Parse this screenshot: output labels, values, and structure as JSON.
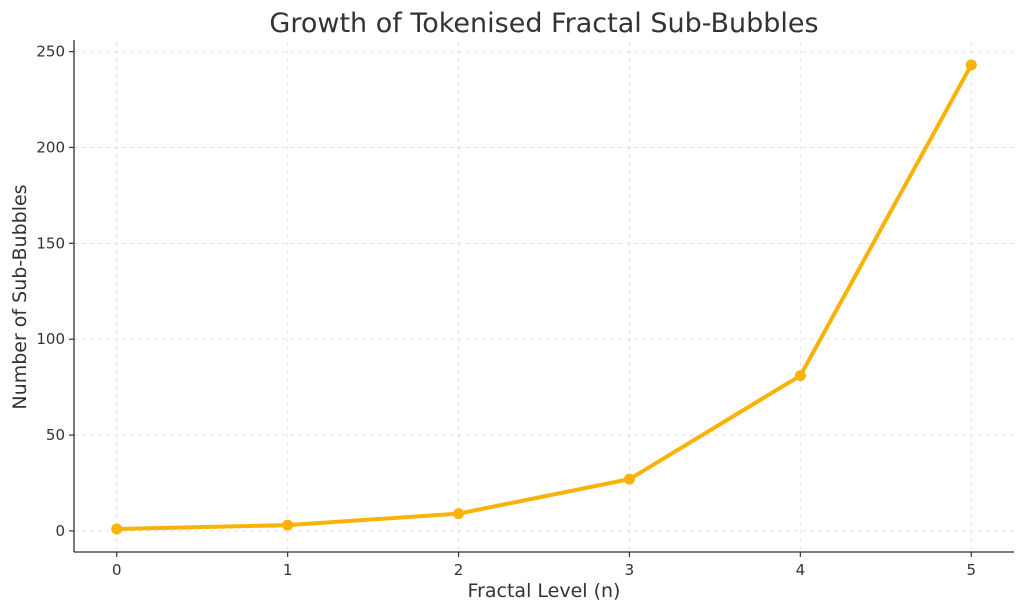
{
  "chart_data": {
    "type": "line",
    "title": "Growth of Tokenised Fractal Sub-Bubbles",
    "xlabel": "Fractal Level (n)",
    "ylabel": "Number of Sub-Bubbles",
    "x": [
      0,
      1,
      2,
      3,
      4,
      5
    ],
    "series": [
      {
        "values": [
          1,
          3,
          9,
          27,
          81,
          243
        ],
        "color": "#F9B208",
        "marker": "circle"
      }
    ],
    "xlim": [
      -0.25,
      5.25
    ],
    "ylim": [
      -11,
      255
    ],
    "xticks": [
      "0",
      "1",
      "2",
      "3",
      "4",
      "5"
    ],
    "yticks": [
      0,
      50,
      100,
      150,
      200,
      250
    ],
    "ytick_labels": [
      "0",
      "50",
      "100",
      "150",
      "200",
      "250"
    ],
    "grid": true,
    "legend": "none"
  }
}
